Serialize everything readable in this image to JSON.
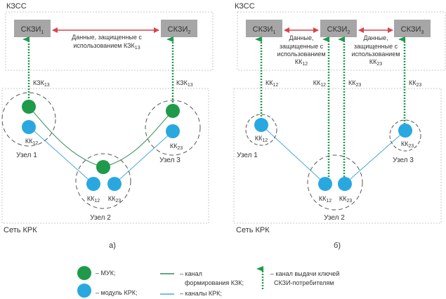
{
  "colors": {
    "muk": "#1e9a4a",
    "krk_module": "#29a8e0",
    "kzk_channel": "#2e8b57",
    "krk_channel": "#4aa8d8",
    "data_arrow": "#d9434b",
    "key_arrow": "#1e9a4a",
    "skzi_box": "#a6a6a6"
  },
  "panel_a": {
    "kzss_label": "КЗСС",
    "krk_label": "Сеть КРК",
    "caption": "а)",
    "skzi": [
      {
        "base": "СКЗИ",
        "sub": "1"
      },
      {
        "base": "СКЗИ",
        "sub": "2"
      }
    ],
    "data_text": {
      "line1": "Данные, защищенные с",
      "line2": "использованием КЗК",
      "line2_sub": "13"
    },
    "key_labels": [
      {
        "base": "КЗК",
        "sub": "13"
      },
      {
        "base": "КЗК",
        "sub": "13"
      }
    ],
    "nodes": [
      {
        "name": "Узел 1",
        "kk": [
          {
            "base": "КК",
            "sub": "12"
          }
        ]
      },
      {
        "name": "Узел 2",
        "kk": [
          {
            "base": "КК",
            "sub": "12"
          },
          {
            "base": "КК",
            "sub": "23"
          }
        ]
      },
      {
        "name": "Узел 3",
        "kk": [
          {
            "base": "КК",
            "sub": "23"
          }
        ]
      }
    ]
  },
  "panel_b": {
    "kzss_label": "КЗСС",
    "krk_label": "Сеть КРК",
    "caption": "б)",
    "skzi": [
      {
        "base": "СКЗИ",
        "sub": "1"
      },
      {
        "base": "СКЗИ",
        "sub": "2"
      },
      {
        "base": "СКЗИ",
        "sub": "3"
      }
    ],
    "data_text_12": {
      "line1": "Данные,",
      "line2": "защищенные с",
      "line3": "использованием",
      "line4": "КК",
      "line4_sub": "12"
    },
    "data_text_23": {
      "line1": "Данные,",
      "line2": "защищенные с",
      "line3": "использованием",
      "line4": "КК",
      "line4_sub": "23"
    },
    "key_labels": [
      {
        "base": "КК",
        "sub": "12"
      },
      {
        "base": "КК",
        "sub": "12"
      },
      {
        "base": "КК",
        "sub": "23"
      },
      {
        "base": "КК",
        "sub": "23"
      }
    ],
    "nodes": [
      {
        "name": "Узел 1",
        "kk": [
          {
            "base": "КК",
            "sub": "12"
          }
        ]
      },
      {
        "name": "Узел 2",
        "kk": [
          {
            "base": "КК",
            "sub": "12"
          },
          {
            "base": "КК",
            "sub": "23"
          }
        ]
      },
      {
        "name": "Узел 3",
        "kk": [
          {
            "base": "КК",
            "sub": "23"
          }
        ]
      }
    ]
  },
  "legend": {
    "muk": "– МУК;",
    "krk_module": "– модуль КРК;",
    "kzk_channel_line1": "– канал",
    "kzk_channel_line2": "формирования КЗК;",
    "krk_channels": "– каналы КРК;",
    "key_channel_line1": "– канал выдачи ключей",
    "key_channel_line2": "СКЗИ-потребителям"
  }
}
